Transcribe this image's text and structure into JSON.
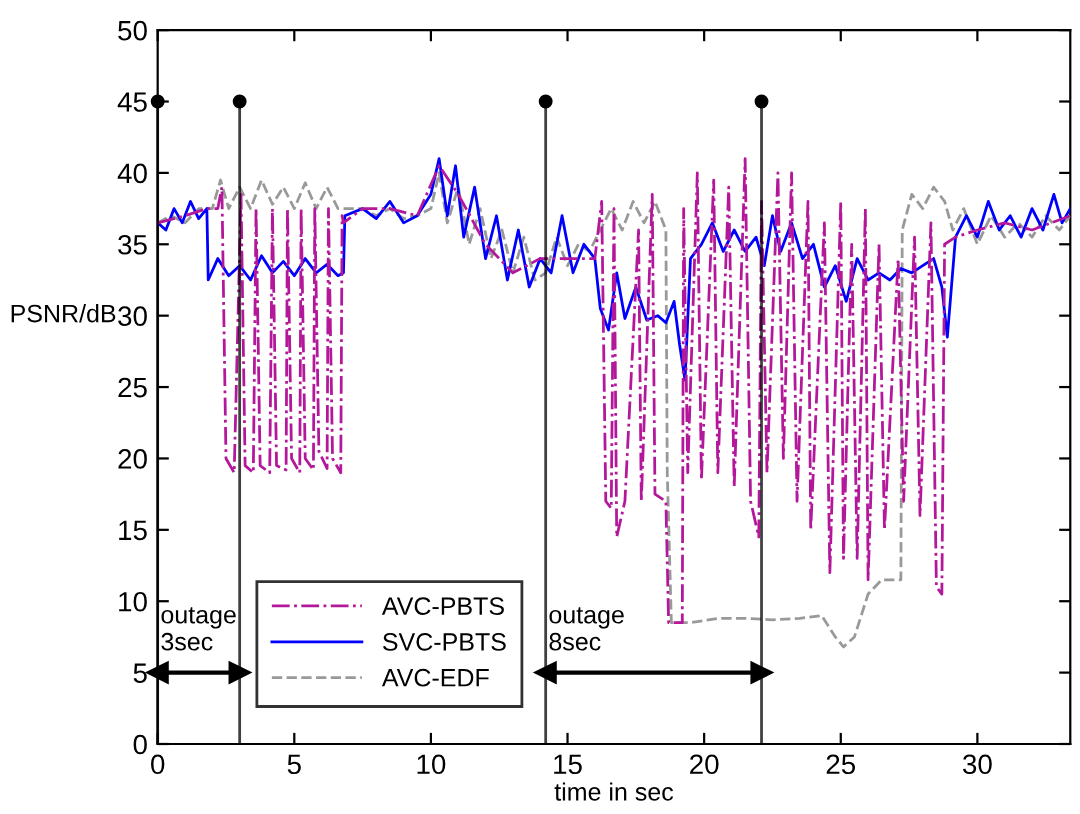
{
  "chart_data": {
    "type": "line",
    "xlabel": "time in sec",
    "ylabel": "PSNR/dB",
    "xlim": [
      0,
      33.4
    ],
    "ylim": [
      0,
      50
    ],
    "xticks": [
      0,
      5,
      10,
      15,
      20,
      25,
      30
    ],
    "yticks": [
      0,
      5,
      10,
      15,
      20,
      25,
      30,
      35,
      40,
      45,
      50
    ],
    "legend": "bottom left",
    "marker": "none",
    "series": [
      {
        "name": "AVC-PBTS",
        "color": "#b4189a",
        "line_style": "dashdot",
        "x": [
          0,
          1,
          1.8,
          2.2,
          2.35,
          2.5,
          2.8,
          3.05,
          3.2,
          3.5,
          3.6,
          3.75,
          4.1,
          4.2,
          4.35,
          4.7,
          4.75,
          4.9,
          5.2,
          5.25,
          5.4,
          5.7,
          5.75,
          5.9,
          6.2,
          6.25,
          6.4,
          6.7,
          6.75,
          6.8,
          7.5,
          8.5,
          9.5,
          10.3,
          11,
          12,
          13,
          14,
          15,
          16,
          16.25,
          16.4,
          16.6,
          16.7,
          16.8,
          17.1,
          17.6,
          17.7,
          18.1,
          18.2,
          18.6,
          18.7,
          19.2,
          19.25,
          19.4,
          19.75,
          19.9,
          20.35,
          20.5,
          20.9,
          21.1,
          21.5,
          21.7,
          22,
          22.1,
          22.3,
          22.7,
          22.9,
          23.2,
          23.4,
          23.8,
          23.9,
          24.4,
          24.6,
          25,
          25.1,
          25.4,
          25.6,
          25.9,
          26,
          26.4,
          26.6,
          27.1,
          27.3,
          27.7,
          27.9,
          28.3,
          28.5,
          28.7,
          28.8,
          29.2,
          30,
          31,
          32,
          33.4
        ],
        "values": [
          36.5,
          37,
          37.5,
          37.5,
          39,
          20,
          19,
          38.5,
          19.5,
          19,
          37.5,
          19.5,
          19,
          37.5,
          19.5,
          19.2,
          37.5,
          20,
          19,
          37.5,
          20,
          19.2,
          37.5,
          20.5,
          19.3,
          37.5,
          20,
          19,
          37,
          36.5,
          37.5,
          37.5,
          37,
          40.5,
          38.5,
          35,
          33,
          34,
          34,
          34,
          38,
          17,
          16.5,
          37.5,
          14.5,
          17,
          36,
          17,
          38.5,
          17.5,
          17,
          8.5,
          8.5,
          37.5,
          19,
          40,
          18.5,
          39.5,
          19,
          39,
          18,
          41,
          17,
          14.5,
          38,
          19,
          40,
          20,
          40,
          17,
          38,
          15,
          36.5,
          12,
          38,
          13,
          35,
          13,
          37.5,
          11.5,
          35,
          15,
          34,
          17,
          35.5,
          16,
          36.5,
          11,
          10.5,
          35,
          35.5,
          36,
          36.5,
          36,
          37
        ]
      },
      {
        "name": "SVC-PBTS",
        "color": "#0000ff",
        "line_style": "solid",
        "x": [
          0,
          0.3,
          0.6,
          0.9,
          1.2,
          1.5,
          1.8,
          1.85,
          2.2,
          2.6,
          3,
          3.4,
          3.8,
          4.2,
          4.6,
          5,
          5.4,
          5.8,
          6.2,
          6.6,
          6.8,
          6.85,
          7.5,
          8,
          8.5,
          9,
          9.5,
          10,
          10.3,
          10.6,
          10.9,
          11.2,
          11.6,
          12,
          12.4,
          12.8,
          13.2,
          13.6,
          14,
          14.4,
          14.8,
          15.2,
          15.6,
          16,
          16.2,
          16.5,
          16.8,
          17.1,
          17.5,
          17.9,
          18.3,
          18.6,
          18.9,
          19.1,
          19.3,
          19.5,
          19.9,
          20.3,
          20.7,
          21.1,
          21.5,
          21.9,
          22.2,
          22.5,
          22.8,
          23.2,
          23.6,
          24,
          24.4,
          24.8,
          25.2,
          25.6,
          26,
          26.4,
          26.8,
          27.2,
          27.6,
          28,
          28.4,
          28.7,
          28.9,
          29.2,
          29.6,
          30,
          30.4,
          30.8,
          31.2,
          31.6,
          32,
          32.4,
          32.8,
          33.1,
          33.4
        ],
        "values": [
          36.5,
          36,
          37.5,
          36.5,
          38,
          36.8,
          37.5,
          32.5,
          34,
          32.8,
          33.5,
          32.5,
          34.2,
          33,
          33.8,
          32.8,
          34,
          33,
          33.6,
          32.8,
          33,
          37,
          37.5,
          36.8,
          38,
          36.5,
          37,
          38.5,
          41,
          37,
          40.5,
          35.5,
          39,
          34,
          37,
          32.5,
          36,
          32,
          34,
          33,
          37,
          33,
          35,
          34,
          30.5,
          29,
          33,
          29.8,
          32,
          29.7,
          30,
          29.5,
          31,
          28,
          25.5,
          34,
          35,
          36.5,
          34.5,
          36,
          34.5,
          35.5,
          33.5,
          37,
          34.5,
          36.5,
          34,
          35,
          32,
          33.5,
          31,
          34,
          32.5,
          33,
          32.5,
          33.3,
          33,
          33.5,
          34,
          32,
          28.5,
          35.5,
          37,
          35.5,
          38,
          36,
          37,
          35.5,
          37.5,
          36,
          38.5,
          36.5,
          37.5
        ]
      },
      {
        "name": "AVC-EDF",
        "color": "#999999",
        "line_style": "dashed",
        "x": [
          0,
          0.5,
          1,
          1.5,
          2,
          2.3,
          2.6,
          3,
          3.4,
          3.8,
          4.2,
          4.6,
          5,
          5.4,
          5.8,
          6.2,
          6.6,
          7,
          7.5,
          8,
          8.5,
          9,
          9.5,
          10,
          10.3,
          10.6,
          11,
          11.4,
          11.8,
          12.2,
          12.6,
          13,
          13.4,
          13.8,
          14.2,
          14.6,
          15,
          15.4,
          15.8,
          16.2,
          16.6,
          17,
          17.4,
          17.8,
          18.2,
          18.6,
          18.65,
          18.8,
          19.5,
          20.5,
          21.5,
          22.5,
          23.5,
          24.3,
          24.8,
          25.1,
          25.5,
          26,
          26.5,
          27.2,
          27.25,
          27.6,
          28,
          28.4,
          28.8,
          29.1,
          29.5,
          30,
          30.5,
          31,
          31.5,
          32,
          32.5,
          33,
          33.4
        ],
        "values": [
          36.5,
          37,
          36.5,
          37.5,
          37.5,
          39.5,
          37.5,
          39,
          37.5,
          39.5,
          37.8,
          39,
          37.5,
          39.3,
          37.5,
          39,
          37.5,
          37.5,
          37.5,
          37,
          37.5,
          36.8,
          37,
          37.5,
          40,
          36.5,
          39,
          35,
          37.5,
          34,
          36,
          33,
          35.5,
          32.5,
          33,
          35.5,
          33.5,
          35,
          34.5,
          36,
          37.5,
          36,
          38,
          36.5,
          38,
          36,
          19,
          8.5,
          8.5,
          8.8,
          8.8,
          8.7,
          8.8,
          9,
          7.5,
          6.8,
          7.5,
          10.5,
          11.5,
          11.5,
          36,
          38.5,
          37.5,
          39,
          38,
          36,
          37.5,
          35,
          37,
          35.5,
          36.5,
          35.5,
          37,
          36,
          37
        ]
      },
      {
        "type": "lollipop",
        "color": "#000000",
        "marker": "circle",
        "x": [
          0,
          3,
          14.2,
          22.1
        ],
        "values": [
          45,
          45,
          45,
          45
        ]
      },
      {
        "type": "line",
        "color": "#000000",
        "marker": "triangle",
        "line_style": "solid",
        "x": [
          0,
          3
        ],
        "values": [
          5,
          5
        ]
      },
      {
        "type": "line",
        "color": "#000000",
        "marker": "triangle",
        "line_style": "solid",
        "x": [
          14.2,
          22.1
        ],
        "values": [
          5,
          5
        ]
      }
    ],
    "annotations": [
      "outage\n3sec",
      "outage\n8sec"
    ]
  }
}
